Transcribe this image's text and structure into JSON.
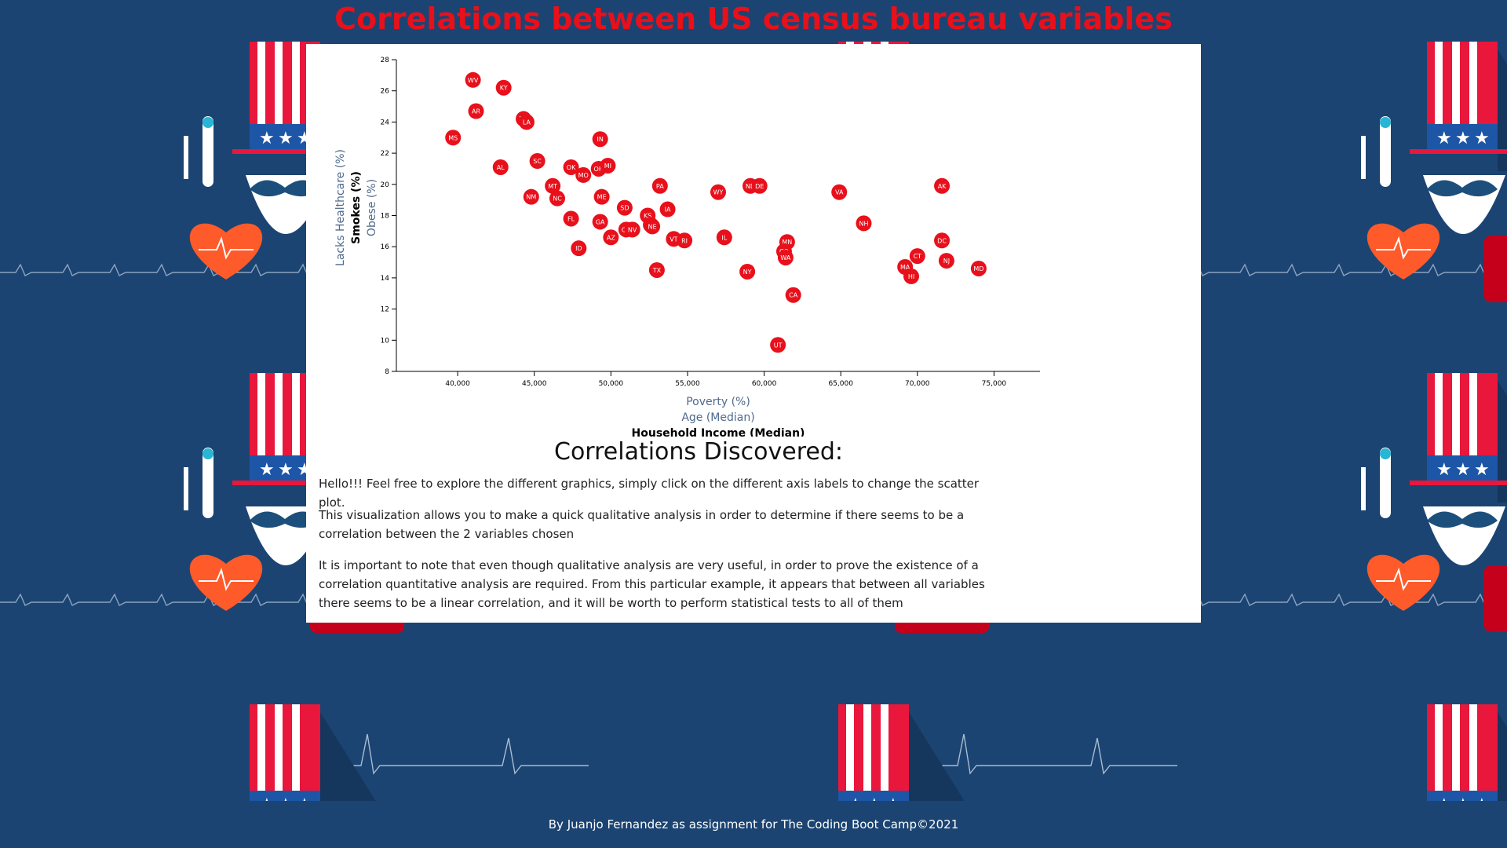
{
  "page": {
    "title": "Correlations between US census bureau variables",
    "footer": "By Juanjo Fernandez as assignment for The Coding Boot Camp©2021"
  },
  "colors": {
    "background": "#1b4472",
    "title": "#e8101b",
    "point": "#e8101b",
    "active_label": "#000000",
    "inactive_label": "#4e6a8c"
  },
  "section": {
    "title": "Correlations Discovered:",
    "paragraphs": [
      "Hello!!! Feel free to explore the different graphics, simply click on the different axis labels to change the scatter plot.",
      "This visualization allows you to make a quick qualitative analysis in order to determine if there seems to be a correlation between the 2 variables chosen",
      "It is important to note that even though qualitative analysis are very useful, in order to prove the existence of a correlation quantitative analysis are required. From this particular example, it appears that between all variables there seems to be a linear correlation, and it will be worth to perform statistical tests to all of them"
    ]
  },
  "chart_data": {
    "type": "scatter",
    "xlabels": [
      {
        "text": "Poverty (%)",
        "active": false
      },
      {
        "text": "Age (Median)",
        "active": false
      },
      {
        "text": "Household Income (Median)",
        "active": true
      }
    ],
    "ylabels": [
      {
        "text": "Lacks Healthcare (%)",
        "active": false
      },
      {
        "text": "Smokes (%)",
        "active": true
      },
      {
        "text": "Obese (%)",
        "active": false
      }
    ],
    "xlim": [
      36000,
      78000
    ],
    "ylim": [
      8,
      28
    ],
    "xticks": [
      40000,
      45000,
      50000,
      55000,
      60000,
      65000,
      70000,
      75000
    ],
    "xtick_labels": [
      "40,000",
      "45,000",
      "50,000",
      "55,000",
      "60,000",
      "65,000",
      "70,000",
      "75,000"
    ],
    "yticks": [
      8,
      10,
      12,
      14,
      16,
      18,
      20,
      22,
      24,
      26,
      28
    ],
    "ytick_labels": [
      "8",
      "10",
      "12",
      "14",
      "16",
      "18",
      "20",
      "22",
      "24",
      "26",
      "28"
    ],
    "points": [
      {
        "label": "WV",
        "x": 41000,
        "y": 26.7
      },
      {
        "label": "KY",
        "x": 43000,
        "y": 26.2
      },
      {
        "label": "AR",
        "x": 41200,
        "y": 24.7
      },
      {
        "label": "TN",
        "x": 44300,
        "y": 24.2
      },
      {
        "label": "LA",
        "x": 44500,
        "y": 24.0
      },
      {
        "label": "MS",
        "x": 39700,
        "y": 23.0
      },
      {
        "label": "IN",
        "x": 49300,
        "y": 22.9
      },
      {
        "label": "SC",
        "x": 45200,
        "y": 21.5
      },
      {
        "label": "AL",
        "x": 42800,
        "y": 21.1
      },
      {
        "label": "OK",
        "x": 47400,
        "y": 21.1
      },
      {
        "label": "OH",
        "x": 49200,
        "y": 21.0
      },
      {
        "label": "MI",
        "x": 49800,
        "y": 21.2
      },
      {
        "label": "MO",
        "x": 48200,
        "y": 20.6
      },
      {
        "label": "MT",
        "x": 46200,
        "y": 19.9
      },
      {
        "label": "PA",
        "x": 53200,
        "y": 19.9
      },
      {
        "label": "ND",
        "x": 59100,
        "y": 19.9
      },
      {
        "label": "DE",
        "x": 59700,
        "y": 19.9
      },
      {
        "label": "AK",
        "x": 71600,
        "y": 19.9
      },
      {
        "label": "WY",
        "x": 57000,
        "y": 19.5
      },
      {
        "label": "VA",
        "x": 64900,
        "y": 19.5
      },
      {
        "label": "NM",
        "x": 44800,
        "y": 19.2
      },
      {
        "label": "NC",
        "x": 46500,
        "y": 19.1
      },
      {
        "label": "ME",
        "x": 49400,
        "y": 19.2
      },
      {
        "label": "SD",
        "x": 50900,
        "y": 18.5
      },
      {
        "label": "IA",
        "x": 53700,
        "y": 18.4
      },
      {
        "label": "KS",
        "x": 52400,
        "y": 18.0
      },
      {
        "label": "FL",
        "x": 47400,
        "y": 17.8
      },
      {
        "label": "NH",
        "x": 66500,
        "y": 17.5
      },
      {
        "label": "WI",
        "x": 52600,
        "y": 17.4
      },
      {
        "label": "NE",
        "x": 52700,
        "y": 17.3
      },
      {
        "label": "GA",
        "x": 49300,
        "y": 17.6
      },
      {
        "label": "OR",
        "x": 51000,
        "y": 17.1
      },
      {
        "label": "NV",
        "x": 51400,
        "y": 17.1
      },
      {
        "label": "AZ",
        "x": 50000,
        "y": 16.6
      },
      {
        "label": "VT",
        "x": 54100,
        "y": 16.5
      },
      {
        "label": "RI",
        "x": 54800,
        "y": 16.4
      },
      {
        "label": "IL",
        "x": 57400,
        "y": 16.6
      },
      {
        "label": "MN",
        "x": 61500,
        "y": 16.3
      },
      {
        "label": "DC",
        "x": 71600,
        "y": 16.4
      },
      {
        "label": "ID",
        "x": 47900,
        "y": 15.9
      },
      {
        "label": "CO",
        "x": 61300,
        "y": 15.7
      },
      {
        "label": "WA",
        "x": 61400,
        "y": 15.3
      },
      {
        "label": "CT",
        "x": 70000,
        "y": 15.4
      },
      {
        "label": "NJ",
        "x": 71900,
        "y": 15.1
      },
      {
        "label": "MA",
        "x": 69200,
        "y": 14.7
      },
      {
        "label": "MD",
        "x": 74000,
        "y": 14.6
      },
      {
        "label": "TX",
        "x": 53000,
        "y": 14.5
      },
      {
        "label": "NY",
        "x": 58900,
        "y": 14.4
      },
      {
        "label": "HI",
        "x": 69600,
        "y": 14.1
      },
      {
        "label": "CA",
        "x": 61900,
        "y": 12.9
      },
      {
        "label": "UT",
        "x": 60900,
        "y": 9.7
      }
    ]
  }
}
